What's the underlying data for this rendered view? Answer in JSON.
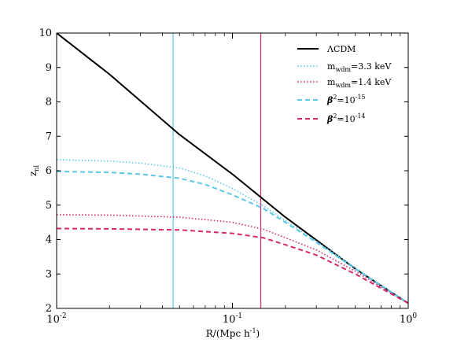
{
  "chart_data": {
    "type": "line",
    "title": "",
    "xlabel": "R/(Mpc h",
    "xlabel_sup": "-1",
    "xlabel_close": ")",
    "ylabel": "z",
    "ylabel_sub": "nl",
    "xscale": "log",
    "xlim": [
      0.01,
      1
    ],
    "ylim": [
      2,
      10
    ],
    "x_ticks": [
      {
        "base": "10",
        "exp": "-2",
        "value": 0.01
      },
      {
        "base": "10",
        "exp": "-1",
        "value": 0.1
      },
      {
        "base": "10",
        "exp": "0",
        "value": 1
      }
    ],
    "y_ticks": [
      "2",
      "3",
      "4",
      "5",
      "6",
      "7",
      "8",
      "9",
      "10"
    ],
    "legend_position": "top-right",
    "vertical_lines": [
      {
        "x": 0.046,
        "color": "#5bc8e6"
      },
      {
        "x": 0.145,
        "color": "#d6286e"
      }
    ],
    "series": [
      {
        "name": "ΛCDM",
        "color": "#000000",
        "style": "solid",
        "x": [
          0.01,
          0.02,
          0.05,
          0.1,
          0.2,
          0.5,
          1.0
        ],
        "y": [
          10.0,
          8.8,
          7.05,
          5.9,
          4.65,
          3.15,
          2.15
        ]
      },
      {
        "name_main": "m",
        "name_sub": "wdm",
        "name_rest": "=3.3 keV",
        "color": "#5bc8e6",
        "style": "dotted",
        "x": [
          0.01,
          0.02,
          0.03,
          0.05,
          0.07,
          0.1,
          0.15,
          0.2,
          0.3,
          0.5,
          1.0
        ],
        "y": [
          6.32,
          6.28,
          6.22,
          6.08,
          5.85,
          5.48,
          4.98,
          4.55,
          3.95,
          3.18,
          2.15
        ]
      },
      {
        "name_main": "m",
        "name_sub": "wdm",
        "name_rest": "=1.4 keV",
        "color": "#d6286e",
        "style": "dotted",
        "x": [
          0.01,
          0.02,
          0.05,
          0.1,
          0.15,
          0.2,
          0.3,
          0.5,
          1.0
        ],
        "y": [
          4.72,
          4.71,
          4.65,
          4.5,
          4.3,
          4.05,
          3.7,
          3.08,
          2.15
        ]
      },
      {
        "name_main": "β",
        "name_sup": "2",
        "name_rest": "=10",
        "name_rest_sup": "-15",
        "color": "#5bc8e6",
        "style": "dashed",
        "x": [
          0.01,
          0.02,
          0.03,
          0.05,
          0.07,
          0.1,
          0.15,
          0.2,
          0.3,
          0.5,
          1.0
        ],
        "y": [
          5.98,
          5.95,
          5.9,
          5.78,
          5.6,
          5.3,
          4.9,
          4.5,
          3.92,
          3.15,
          2.15
        ]
      },
      {
        "name_main": "β",
        "name_sup": "2",
        "name_rest": "=10",
        "name_rest_sup": "-14",
        "color": "#d6286e",
        "style": "dashed",
        "x": [
          0.01,
          0.02,
          0.05,
          0.1,
          0.15,
          0.2,
          0.3,
          0.5,
          1.0
        ],
        "y": [
          4.32,
          4.31,
          4.28,
          4.18,
          4.05,
          3.85,
          3.55,
          3.0,
          2.15
        ]
      }
    ]
  }
}
